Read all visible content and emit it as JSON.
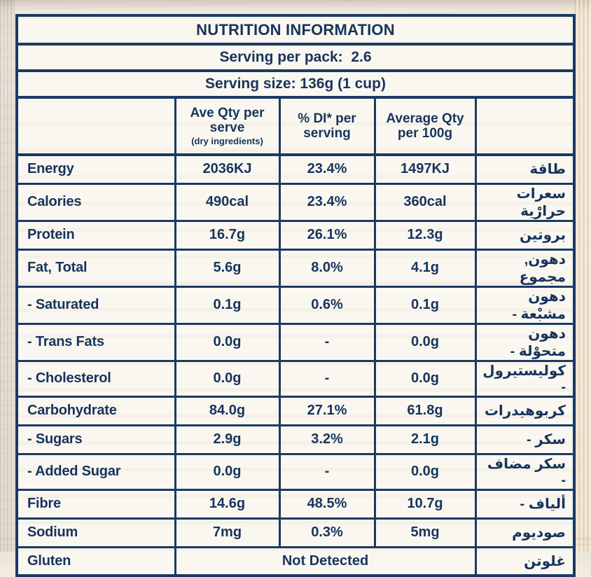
{
  "colors": {
    "navy": "#1b3a64",
    "paper": "#faf7f1",
    "wood": "#f2ece2"
  },
  "header": {
    "title": "NUTRITION INFORMATION",
    "serving_per_pack": "Serving per pack:  2.6",
    "serving_size": "Serving size: 136g (1 cup)"
  },
  "table": {
    "columns": {
      "nutrient": "",
      "ave_qty": {
        "line1": "Ave Qty per",
        "line2": "serve",
        "note": "(dry ingredients)"
      },
      "di": {
        "line1": "% DI* per",
        "line2": "serving"
      },
      "avg_100g": {
        "line1": "Average Qty",
        "line2": "per 100g"
      },
      "arabic": ""
    },
    "rows": [
      {
        "label": "Energy",
        "serve": "2036KJ",
        "di": "23.4%",
        "per100": "1497KJ",
        "ar": "طاقة"
      },
      {
        "label": "Calories",
        "serve": "490cal",
        "di": "23.4%",
        "per100": "360cal",
        "ar": "سعرات حرارْية"
      },
      {
        "label": "Protein",
        "serve": "16.7g",
        "di": "26.1%",
        "per100": "12.3g",
        "ar": "بروتين"
      },
      {
        "label": "Fat, Total",
        "serve": "5.6g",
        "di": "8.0%",
        "per100": "4.1g",
        "ar": "دهون, مجموع"
      },
      {
        "label": "- Saturated",
        "serve": "0.1g",
        "di": "0.6%",
        "per100": "0.1g",
        "ar": "دهون مشبْعة -"
      },
      {
        "label": "- Trans Fats",
        "serve": "0.0g",
        "di": "-",
        "per100": "0.0g",
        "ar": "دهون متحوْلة -"
      },
      {
        "label": "- Cholesterol",
        "serve": "0.0g",
        "di": "-",
        "per100": "0.0g",
        "ar": "كوليستيرول -"
      },
      {
        "label": "Carbohydrate",
        "serve": "84.0g",
        "di": "27.1%",
        "per100": "61.8g",
        "ar": "كربوهيدرات"
      },
      {
        "label": "- Sugars",
        "serve": "2.9g",
        "di": "3.2%",
        "per100": "2.1g",
        "ar": "سكر -"
      },
      {
        "label": "- Added Sugar",
        "serve": "0.0g",
        "di": "-",
        "per100": "0.0g",
        "ar": "سكر مضاف -"
      },
      {
        "label": "Fibre",
        "serve": "14.6g",
        "di": "48.5%",
        "per100": "10.7g",
        "ar": "ألياف -"
      },
      {
        "label": "Sodium",
        "serve": "7mg",
        "di": "0.3%",
        "per100": "5mg",
        "ar": "صوديوم"
      },
      {
        "label": "Gluten",
        "value": "Not Detected",
        "value_colspan": 3,
        "ar": "غلوتن"
      }
    ]
  }
}
